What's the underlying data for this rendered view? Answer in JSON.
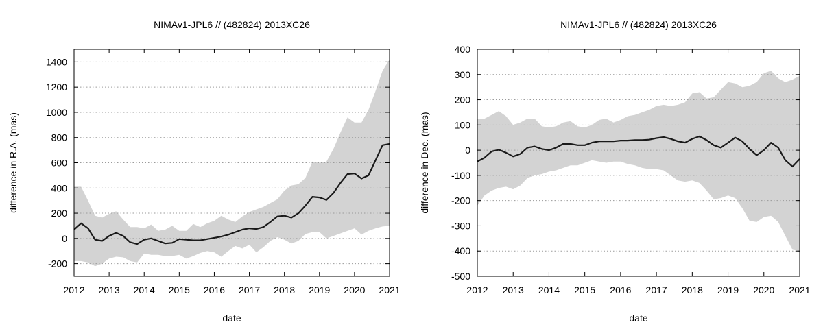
{
  "chart_data": [
    {
      "type": "line",
      "title": "NIMAv1-JPL6 // (482824) 2013XC26",
      "xlabel": "date",
      "ylabel": "difference in R.A. (mas)",
      "xlim": [
        2012,
        2021
      ],
      "ylim": [
        -300,
        1500
      ],
      "xticks": [
        2012,
        2013,
        2014,
        2015,
        2016,
        2017,
        2018,
        2019,
        2020,
        2021
      ],
      "yticks": [
        -200,
        0,
        200,
        400,
        600,
        800,
        1000,
        1200,
        1400
      ],
      "grid": "horizontal-dotted",
      "colors": {
        "line": "#1a1a1a",
        "band": "#d3d3d3",
        "grid": "#9a9a9a"
      },
      "series": [
        {
          "name": "difference",
          "x": [
            2012.0,
            2012.2,
            2012.4,
            2012.6,
            2012.8,
            2013.0,
            2013.2,
            2013.4,
            2013.6,
            2013.8,
            2014.0,
            2014.2,
            2014.4,
            2014.6,
            2014.8,
            2015.0,
            2015.2,
            2015.4,
            2015.6,
            2015.8,
            2016.0,
            2016.2,
            2016.4,
            2016.6,
            2016.8,
            2017.0,
            2017.2,
            2017.4,
            2017.6,
            2017.8,
            2018.0,
            2018.2,
            2018.4,
            2018.6,
            2018.8,
            2019.0,
            2019.2,
            2019.4,
            2019.6,
            2019.8,
            2020.0,
            2020.2,
            2020.4,
            2020.6,
            2020.8,
            2021.0
          ],
          "values": [
            70,
            120,
            80,
            -10,
            -20,
            20,
            45,
            20,
            -30,
            -45,
            -10,
            0,
            -20,
            -40,
            -35,
            -5,
            -10,
            -15,
            -15,
            -5,
            5,
            15,
            30,
            50,
            70,
            80,
            75,
            90,
            130,
            175,
            180,
            165,
            200,
            260,
            330,
            325,
            305,
            360,
            440,
            510,
            515,
            475,
            500,
            620,
            740,
            750
          ]
        }
      ],
      "band": {
        "upper": [
          410,
          410,
          300,
          180,
          165,
          195,
          215,
          150,
          90,
          90,
          80,
          110,
          60,
          70,
          100,
          60,
          60,
          115,
          90,
          120,
          140,
          180,
          150,
          130,
          175,
          210,
          230,
          250,
          280,
          310,
          380,
          420,
          430,
          480,
          610,
          600,
          610,
          710,
          840,
          960,
          920,
          920,
          1020,
          1170,
          1330,
          1420
        ],
        "lower": [
          -180,
          -180,
          -190,
          -220,
          -200,
          -160,
          -145,
          -150,
          -180,
          -190,
          -120,
          -130,
          -130,
          -140,
          -140,
          -130,
          -160,
          -140,
          -115,
          -100,
          -110,
          -145,
          -100,
          -60,
          -80,
          -50,
          -110,
          -70,
          -20,
          10,
          -10,
          -40,
          -20,
          35,
          50,
          50,
          0,
          20,
          40,
          60,
          80,
          30,
          60,
          80,
          95,
          100
        ]
      }
    },
    {
      "type": "line",
      "title": "NIMAv1-JPL6 // (482824) 2013XC26",
      "xlabel": "date",
      "ylabel": "difference in Dec. (mas)",
      "xlim": [
        2012,
        2021
      ],
      "ylim": [
        -500,
        400
      ],
      "xticks": [
        2012,
        2013,
        2014,
        2015,
        2016,
        2017,
        2018,
        2019,
        2020,
        2021
      ],
      "yticks": [
        -500,
        -400,
        -300,
        -200,
        -100,
        0,
        100,
        200,
        300,
        400
      ],
      "grid": "horizontal-dotted",
      "colors": {
        "line": "#1a1a1a",
        "band": "#d3d3d3",
        "grid": "#9a9a9a"
      },
      "series": [
        {
          "name": "difference",
          "x": [
            2012.0,
            2012.2,
            2012.4,
            2012.6,
            2012.8,
            2013.0,
            2013.2,
            2013.4,
            2013.6,
            2013.8,
            2014.0,
            2014.2,
            2014.4,
            2014.6,
            2014.8,
            2015.0,
            2015.2,
            2015.4,
            2015.6,
            2015.8,
            2016.0,
            2016.2,
            2016.4,
            2016.6,
            2016.8,
            2017.0,
            2017.2,
            2017.4,
            2017.6,
            2017.8,
            2018.0,
            2018.2,
            2018.4,
            2018.6,
            2018.8,
            2019.0,
            2019.2,
            2019.4,
            2019.6,
            2019.8,
            2020.0,
            2020.2,
            2020.4,
            2020.6,
            2020.8,
            2021.0
          ],
          "values": [
            -45,
            -30,
            -5,
            2,
            -10,
            -25,
            -15,
            10,
            15,
            5,
            0,
            10,
            25,
            25,
            20,
            20,
            30,
            35,
            35,
            35,
            38,
            38,
            40,
            40,
            42,
            48,
            52,
            45,
            35,
            30,
            45,
            55,
            40,
            20,
            10,
            30,
            50,
            35,
            5,
            -20,
            0,
            30,
            10,
            -40,
            -65,
            -35
          ]
        }
      ],
      "band": {
        "upper": [
          125,
          125,
          140,
          155,
          135,
          100,
          110,
          125,
          125,
          95,
          90,
          95,
          110,
          115,
          95,
          90,
          100,
          120,
          125,
          110,
          120,
          135,
          140,
          150,
          160,
          175,
          180,
          175,
          180,
          190,
          225,
          230,
          205,
          210,
          240,
          270,
          265,
          250,
          255,
          270,
          305,
          315,
          285,
          270,
          280,
          295
        ],
        "lower": [
          -220,
          -180,
          -160,
          -150,
          -145,
          -155,
          -140,
          -110,
          -100,
          -95,
          -85,
          -80,
          -70,
          -60,
          -60,
          -50,
          -40,
          -45,
          -50,
          -45,
          -45,
          -55,
          -60,
          -70,
          -75,
          -75,
          -80,
          -100,
          -120,
          -125,
          -120,
          -130,
          -160,
          -195,
          -190,
          -180,
          -190,
          -230,
          -280,
          -285,
          -265,
          -260,
          -285,
          -340,
          -395,
          -400
        ]
      }
    }
  ]
}
